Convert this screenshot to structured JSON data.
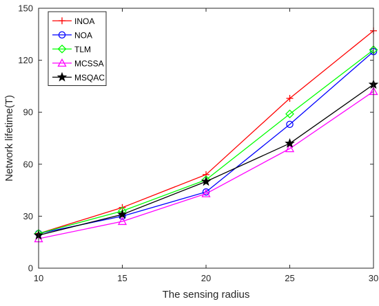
{
  "chart_data": {
    "type": "line",
    "title": "",
    "xlabel": "The sensing radius",
    "ylabel": "Network lifetime(T)",
    "x": [
      10,
      15,
      20,
      25,
      30
    ],
    "xlim": [
      10,
      30
    ],
    "ylim": [
      0,
      150
    ],
    "xticks": [
      "10",
      "15",
      "20",
      "25",
      "30"
    ],
    "yticks": [
      "0",
      "30",
      "60",
      "90",
      "120",
      "150"
    ],
    "grid": false,
    "legend_position": "top-left",
    "series": [
      {
        "name": "INOA",
        "color": "#ff0000",
        "marker": "plus",
        "values": [
          20,
          35,
          54,
          98,
          137
        ]
      },
      {
        "name": "NOA",
        "color": "#0000ff",
        "marker": "circle",
        "values": [
          20,
          30,
          44,
          83,
          125
        ]
      },
      {
        "name": "TLM",
        "color": "#00ff00",
        "marker": "diamond",
        "values": [
          20,
          33,
          51,
          89,
          126
        ]
      },
      {
        "name": "MCSSA",
        "color": "#ff00ff",
        "marker": "triangle",
        "values": [
          17,
          27,
          43,
          69,
          102
        ]
      },
      {
        "name": "MSQAC",
        "color": "#000000",
        "marker": "star",
        "values": [
          19,
          31,
          50,
          72,
          106
        ]
      }
    ]
  }
}
